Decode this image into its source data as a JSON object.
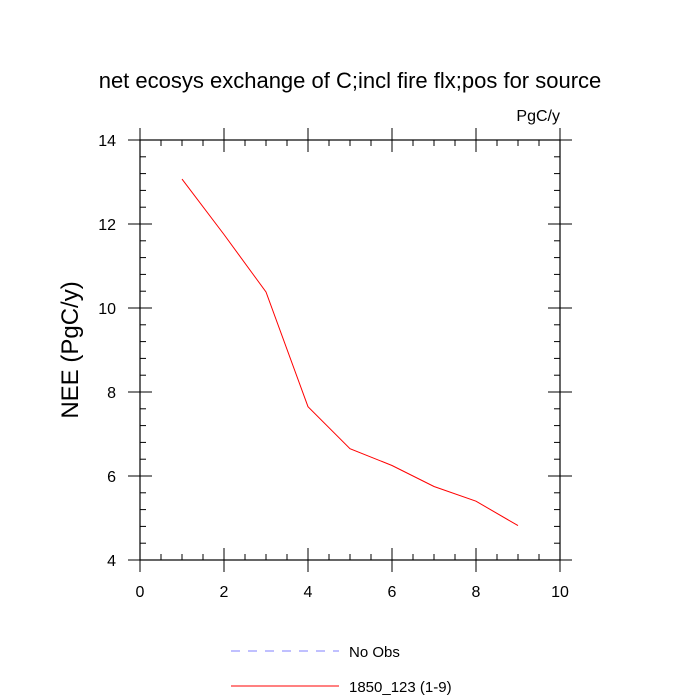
{
  "chart_data": {
    "type": "line",
    "title": "net ecosys exchange of C;incl fire flx;pos for source",
    "units": "PgC/y",
    "xlabel": "",
    "ylabel": "NEE  (PgC/y)",
    "xlim": [
      0,
      10
    ],
    "ylim": [
      4,
      14
    ],
    "x_ticks": [
      0,
      2,
      4,
      6,
      8,
      10
    ],
    "y_ticks": [
      4,
      6,
      8,
      10,
      12,
      14
    ],
    "grid": false,
    "legend_position": "bottom-center",
    "series": [
      {
        "name": "1850_123 (1-9)",
        "color": "#ff0000",
        "style": "solid",
        "x": [
          1,
          2,
          3,
          4,
          5,
          6,
          7,
          8,
          9
        ],
        "y": [
          13.07,
          11.75,
          10.38,
          7.65,
          6.65,
          6.25,
          5.75,
          5.4,
          4.82
        ]
      }
    ],
    "legend": [
      {
        "label": "No Obs",
        "color": "#8080ff",
        "style": "dashed"
      },
      {
        "label": "1850_123 (1-9)",
        "color": "#ff0000",
        "style": "solid"
      }
    ]
  }
}
